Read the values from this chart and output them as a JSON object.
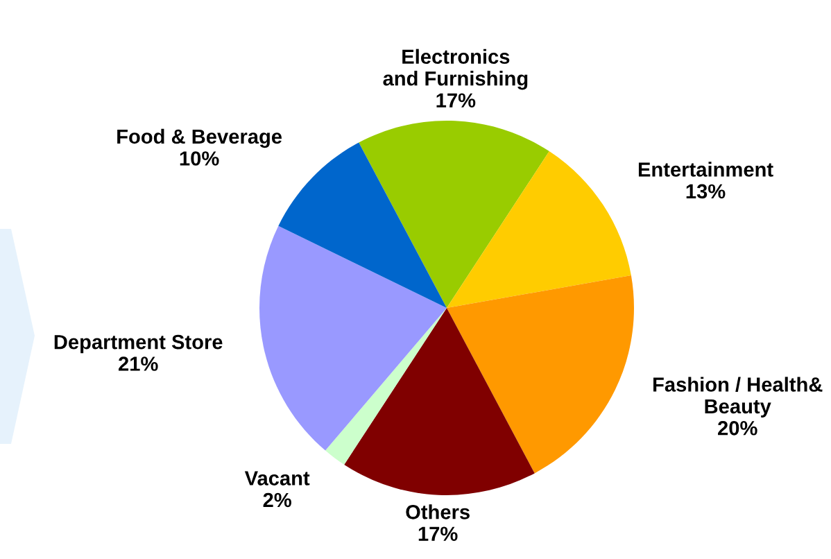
{
  "chart_data": {
    "type": "pie",
    "categories": [
      "Electronics\nand Furnishing",
      "Entertainment",
      "Fashion / Health&\nBeauty",
      "Others",
      "Vacant",
      "Department Store",
      "Food & Beverage"
    ],
    "values": [
      17,
      13,
      20,
      17,
      2,
      21,
      10
    ],
    "value_labels": [
      "17%",
      "13%",
      "20%",
      "17%",
      "2%",
      "21%",
      "10%"
    ],
    "colors": [
      "#99cc00",
      "#ffcc00",
      "#ff9900",
      "#800000",
      "#ccffcc",
      "#9999ff",
      "#0066cc"
    ],
    "legend": false
  }
}
